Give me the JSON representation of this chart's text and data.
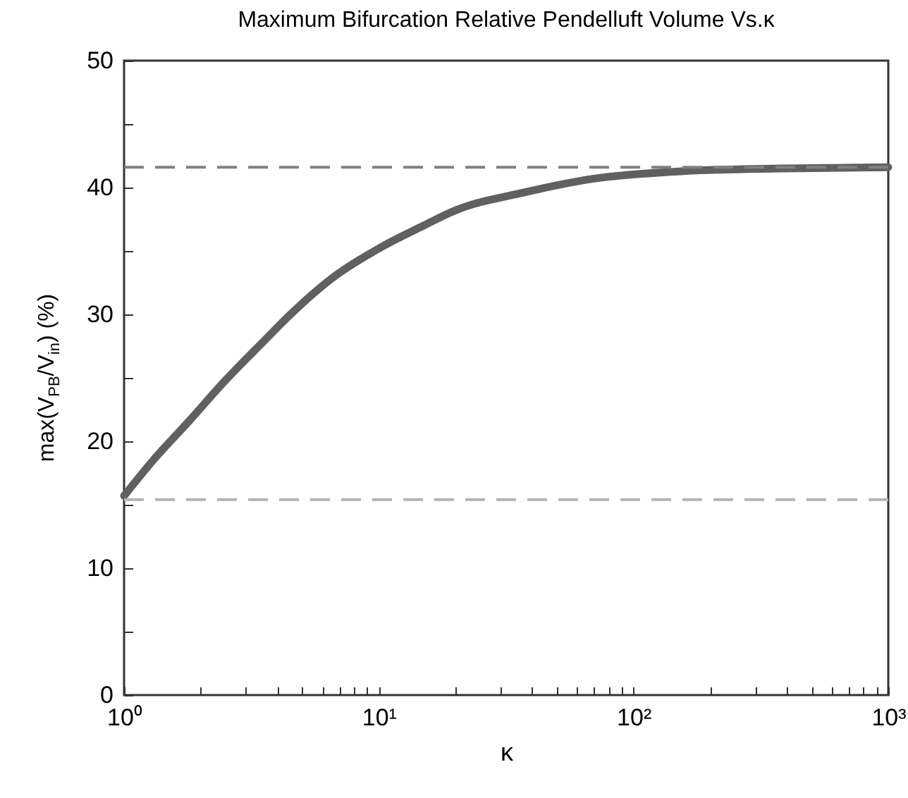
{
  "chart_data": {
    "type": "line",
    "title": "Maximum Bifurcation Relative Pendelluft Volume Vs.κ",
    "xlabel": "κ",
    "ylabel": "max(V$_{PB}$/V$_{in}$) (%)",
    "x": [
      1,
      1.3,
      1.8,
      2.5,
      3.5,
      4.5,
      6.5,
      10,
      15,
      20,
      37,
      70,
      160,
      380,
      1000
    ],
    "series": [
      {
        "color": "#606060",
        "values": [
          15.7,
          18.5,
          21.6,
          24.8,
          27.8,
          30,
          32.8,
          35.2,
          37,
          38.2,
          39.6,
          40.7,
          41.3,
          41.5,
          41.6
        ]
      }
    ],
    "log": "x",
    "xlim": [
      1,
      1000
    ],
    "ylim": [
      0,
      50
    ],
    "xticks": [
      {
        "value": 1,
        "label": "10⁰"
      },
      {
        "value": 2,
        "label": null
      },
      {
        "value": 3,
        "label": null
      },
      {
        "value": 4,
        "label": null
      },
      {
        "value": 5,
        "label": null
      },
      {
        "value": 6,
        "label": null
      },
      {
        "value": 7,
        "label": null
      },
      {
        "value": 8,
        "label": null
      },
      {
        "value": 9,
        "label": null
      },
      {
        "value": 10,
        "label": "10¹"
      },
      {
        "value": 20,
        "label": null
      },
      {
        "value": 30,
        "label": null
      },
      {
        "value": 40,
        "label": null
      },
      {
        "value": 50,
        "label": null
      },
      {
        "value": 60,
        "label": null
      },
      {
        "value": 70,
        "label": null
      },
      {
        "value": 80,
        "label": null
      },
      {
        "value": 90,
        "label": null
      },
      {
        "value": 100,
        "label": "10²"
      },
      {
        "value": 200,
        "label": null
      },
      {
        "value": 300,
        "label": null
      },
      {
        "value": 400,
        "label": null
      },
      {
        "value": 500,
        "label": null
      },
      {
        "value": 600,
        "label": null
      },
      {
        "value": 700,
        "label": null
      },
      {
        "value": 800,
        "label": null
      },
      {
        "value": 900,
        "label": null
      },
      {
        "value": 1000,
        "label": "10³"
      }
    ],
    "yticks": [
      0,
      {
        "value": 5,
        "label": null
      },
      10,
      {
        "value": 15,
        "label": null
      },
      20,
      {
        "value": 25,
        "label": null
      },
      30,
      {
        "value": 35,
        "label": null
      },
      40,
      {
        "value": 45,
        "label": null
      },
      50
    ],
    "ref_lines": [
      {
        "axis": "y",
        "value": 41.6,
        "color": "#808080",
        "line_style": "dashed"
      },
      {
        "axis": "y",
        "value": 15.4,
        "color": "#b4b4b4",
        "line_style": "dashed"
      }
    ],
    "line_style": "solid"
  }
}
